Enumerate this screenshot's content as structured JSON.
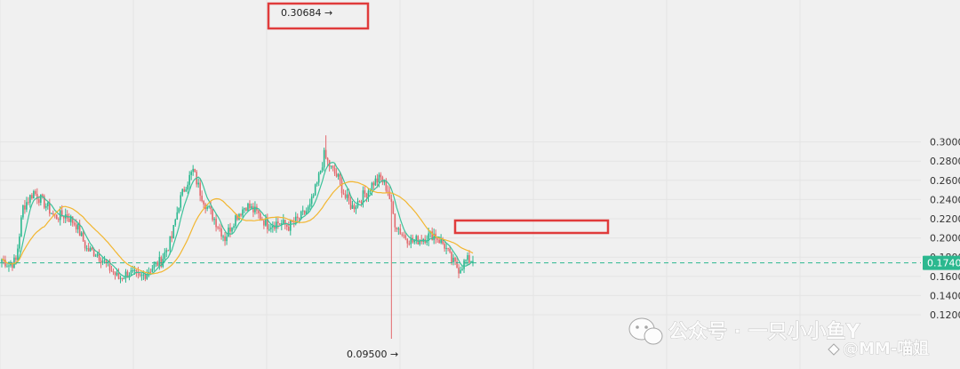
{
  "chart_data": {
    "type": "candlestick",
    "ylim": [
      0.105,
      0.3125
    ],
    "y_ticks": [
      "0.1200",
      "0.1400",
      "0.1600",
      "0.1800",
      "0.2000",
      "0.2200",
      "0.2400",
      "0.2600",
      "0.2800",
      "0.3000"
    ],
    "current_price": "0.1740",
    "current_price_value": 0.174,
    "high_annotation": {
      "label": "0.30684 →",
      "value": 0.30684
    },
    "low_annotation": {
      "label": "0.09500 →",
      "value": 0.095
    },
    "series": [
      {
        "name": "",
        "kind": "moving-average",
        "color": "#3cc29a"
      },
      {
        "name": "",
        "kind": "moving-average",
        "color": "#f2b630"
      }
    ],
    "control_points": [
      [
        0,
        0.178
      ],
      [
        4,
        0.172
      ],
      [
        8,
        0.176
      ],
      [
        12,
        0.232
      ],
      [
        18,
        0.248
      ],
      [
        24,
        0.236
      ],
      [
        30,
        0.222
      ],
      [
        36,
        0.224
      ],
      [
        42,
        0.214
      ],
      [
        48,
        0.188
      ],
      [
        54,
        0.184
      ],
      [
        60,
        0.17
      ],
      [
        66,
        0.158
      ],
      [
        72,
        0.164
      ],
      [
        78,
        0.158
      ],
      [
        84,
        0.168
      ],
      [
        90,
        0.176
      ],
      [
        96,
        0.2
      ],
      [
        100,
        0.236
      ],
      [
        104,
        0.256
      ],
      [
        108,
        0.27
      ],
      [
        112,
        0.248
      ],
      [
        116,
        0.232
      ],
      [
        120,
        0.22
      ],
      [
        126,
        0.2
      ],
      [
        132,
        0.222
      ],
      [
        138,
        0.234
      ],
      [
        144,
        0.226
      ],
      [
        150,
        0.214
      ],
      [
        156,
        0.216
      ],
      [
        162,
        0.212
      ],
      [
        168,
        0.22
      ],
      [
        174,
        0.232
      ],
      [
        178,
        0.256
      ],
      [
        182,
        0.286
      ],
      [
        186,
        0.272
      ],
      [
        190,
        0.262
      ],
      [
        194,
        0.242
      ],
      [
        198,
        0.232
      ],
      [
        202,
        0.24
      ],
      [
        206,
        0.248
      ],
      [
        210,
        0.258
      ],
      [
        214,
        0.262
      ],
      [
        218,
        0.25
      ],
      [
        222,
        0.216
      ],
      [
        226,
        0.204
      ],
      [
        232,
        0.196
      ],
      [
        238,
        0.2
      ],
      [
        244,
        0.204
      ],
      [
        250,
        0.192
      ],
      [
        254,
        0.176
      ],
      [
        258,
        0.168
      ],
      [
        262,
        0.176
      ],
      [
        266,
        0.178
      ]
    ],
    "wick_events": [
      {
        "index": 183,
        "high": 0.30684
      },
      {
        "index": 220,
        "low": 0.095
      }
    ],
    "colors": {
      "up": "#2bb88f",
      "down": "#e36a6e",
      "price_tag": "#2bb88f",
      "highlight_box": "#e03b3b"
    }
  },
  "watermark": {
    "text": "公众号 · 一只小小鱼Y",
    "subtext": "@MM-喵姐"
  }
}
